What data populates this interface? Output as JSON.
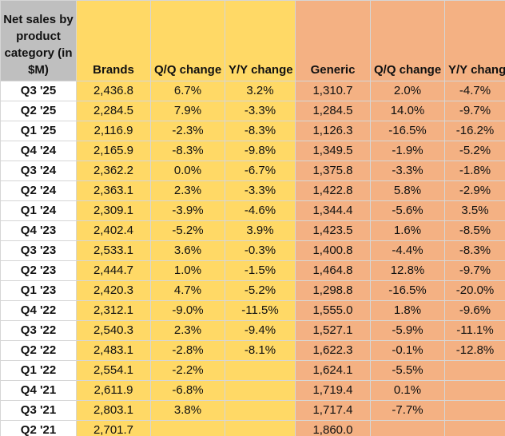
{
  "chart_data": {
    "type": "table",
    "title": "Net sales by product category (in $M)",
    "columns": [
      "Brands",
      "Q/Q change",
      "Y/Y change",
      "Generic",
      "Q/Q change",
      "Y/Y change"
    ],
    "header": {
      "corner": "Net sales by product category (in $M)",
      "brands": "Brands",
      "brands_qq": "Q/Q change",
      "brands_yy": "Y/Y change",
      "generic": "Generic",
      "generic_qq": "Q/Q change",
      "generic_yy": "Y/Y change"
    },
    "rows": [
      {
        "period": "Q3 '25",
        "brands": "2,436.8",
        "brands_qq": "6.7%",
        "brands_yy": "3.2%",
        "generic": "1,310.7",
        "generic_qq": "2.0%",
        "generic_yy": "-4.7%"
      },
      {
        "period": "Q2 '25",
        "brands": "2,284.5",
        "brands_qq": "7.9%",
        "brands_yy": "-3.3%",
        "generic": "1,284.5",
        "generic_qq": "14.0%",
        "generic_yy": "-9.7%"
      },
      {
        "period": "Q1 '25",
        "brands": "2,116.9",
        "brands_qq": "-2.3%",
        "brands_yy": "-8.3%",
        "generic": "1,126.3",
        "generic_qq": "-16.5%",
        "generic_yy": "-16.2%"
      },
      {
        "period": "Q4 '24",
        "brands": "2,165.9",
        "brands_qq": "-8.3%",
        "brands_yy": "-9.8%",
        "generic": "1,349.5",
        "generic_qq": "-1.9%",
        "generic_yy": "-5.2%"
      },
      {
        "period": "Q3 '24",
        "brands": "2,362.2",
        "brands_qq": "0.0%",
        "brands_yy": "-6.7%",
        "generic": "1,375.8",
        "generic_qq": "-3.3%",
        "generic_yy": "-1.8%"
      },
      {
        "period": "Q2 '24",
        "brands": "2,363.1",
        "brands_qq": "2.3%",
        "brands_yy": "-3.3%",
        "generic": "1,422.8",
        "generic_qq": "5.8%",
        "generic_yy": "-2.9%"
      },
      {
        "period": "Q1 '24",
        "brands": "2,309.1",
        "brands_qq": "-3.9%",
        "brands_yy": "-4.6%",
        "generic": "1,344.4",
        "generic_qq": "-5.6%",
        "generic_yy": "3.5%"
      },
      {
        "period": "Q4 '23",
        "brands": "2,402.4",
        "brands_qq": "-5.2%",
        "brands_yy": "3.9%",
        "generic": "1,423.5",
        "generic_qq": "1.6%",
        "generic_yy": "-8.5%"
      },
      {
        "period": "Q3 '23",
        "brands": "2,533.1",
        "brands_qq": "3.6%",
        "brands_yy": "-0.3%",
        "generic": "1,400.8",
        "generic_qq": "-4.4%",
        "generic_yy": "-8.3%"
      },
      {
        "period": "Q2 '23",
        "brands": "2,444.7",
        "brands_qq": "1.0%",
        "brands_yy": "-1.5%",
        "generic": "1,464.8",
        "generic_qq": "12.8%",
        "generic_yy": "-9.7%"
      },
      {
        "period": "Q1 '23",
        "brands": "2,420.3",
        "brands_qq": "4.7%",
        "brands_yy": "-5.2%",
        "generic": "1,298.8",
        "generic_qq": "-16.5%",
        "generic_yy": "-20.0%"
      },
      {
        "period": "Q4 '22",
        "brands": "2,312.1",
        "brands_qq": "-9.0%",
        "brands_yy": "-11.5%",
        "generic": "1,555.0",
        "generic_qq": "1.8%",
        "generic_yy": "-9.6%"
      },
      {
        "period": "Q3 '22",
        "brands": "2,540.3",
        "brands_qq": "2.3%",
        "brands_yy": "-9.4%",
        "generic": "1,527.1",
        "generic_qq": "-5.9%",
        "generic_yy": "-11.1%"
      },
      {
        "period": "Q2 '22",
        "brands": "2,483.1",
        "brands_qq": "-2.8%",
        "brands_yy": "-8.1%",
        "generic": "1,622.3",
        "generic_qq": "-0.1%",
        "generic_yy": "-12.8%"
      },
      {
        "period": "Q1 '22",
        "brands": "2,554.1",
        "brands_qq": "-2.2%",
        "brands_yy": "",
        "generic": "1,624.1",
        "generic_qq": "-5.5%",
        "generic_yy": ""
      },
      {
        "period": "Q4 '21",
        "brands": "2,611.9",
        "brands_qq": "-6.8%",
        "brands_yy": "",
        "generic": "1,719.4",
        "generic_qq": "0.1%",
        "generic_yy": ""
      },
      {
        "period": "Q3 '21",
        "brands": "2,803.1",
        "brands_qq": "3.8%",
        "brands_yy": "",
        "generic": "1,717.4",
        "generic_qq": "-7.7%",
        "generic_yy": ""
      },
      {
        "period": "Q2 '21",
        "brands": "2,701.7",
        "brands_qq": "",
        "brands_yy": "",
        "generic": "1,860.0",
        "generic_qq": "",
        "generic_yy": ""
      }
    ],
    "colors": {
      "header_corner": "#bfbfbf",
      "brands_fill": "#ffd966",
      "generic_fill": "#f4b183",
      "label_fill": "#ffffff"
    }
  }
}
